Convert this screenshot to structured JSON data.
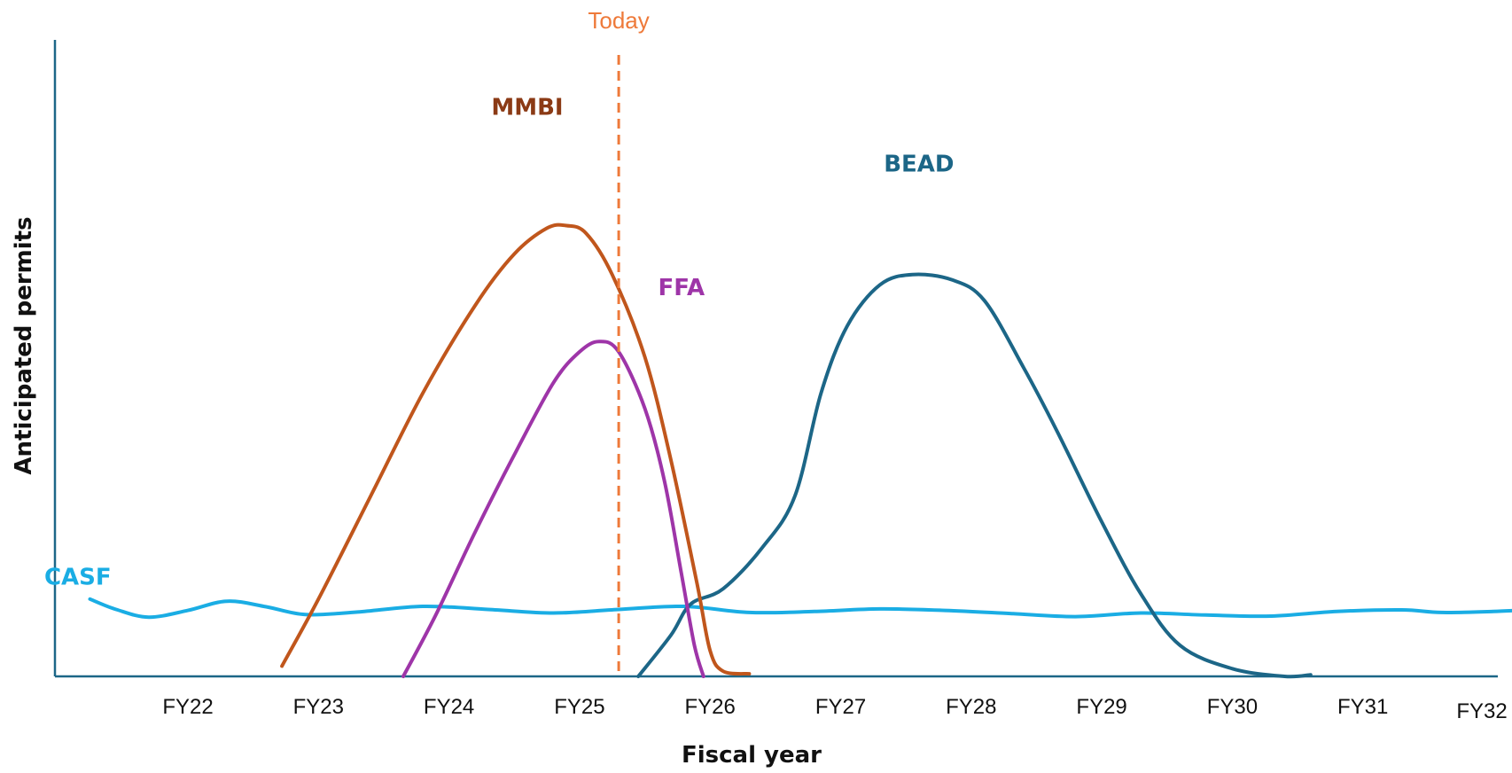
{
  "chart_data": {
    "type": "line",
    "xlabel": "Fiscal year",
    "ylabel": "Anticipated permits",
    "categories": [
      "FY22",
      "FY23",
      "FY24",
      "FY25",
      "FY26",
      "FY27",
      "FY28",
      "FY29",
      "FY30",
      "FY31",
      "FY32"
    ],
    "xlim": [
      21,
      32
    ],
    "ylim": [
      0,
      100
    ],
    "grid": false,
    "legend": "inline labels",
    "today": {
      "label": "Today",
      "x": 25.3,
      "color": "#EE7A3A"
    },
    "series": [
      {
        "name": "MMBI",
        "color": "#C0561C",
        "label_color": "#8B3A15",
        "label_at": [
          24.6,
          109
        ],
        "points": [
          [
            22.72,
            2
          ],
          [
            23.0,
            15
          ],
          [
            23.4,
            35
          ],
          [
            23.8,
            55
          ],
          [
            24.2,
            72
          ],
          [
            24.5,
            82
          ],
          [
            24.75,
            87
          ],
          [
            24.9,
            87.5
          ],
          [
            25.05,
            86
          ],
          [
            25.25,
            78
          ],
          [
            25.5,
            62
          ],
          [
            25.7,
            42
          ],
          [
            25.9,
            18
          ],
          [
            26.0,
            5
          ],
          [
            26.1,
            1
          ],
          [
            26.3,
            0.5
          ]
        ]
      },
      {
        "name": "FFA",
        "color": "#9E35A8",
        "label_color": "#9E35A8",
        "label_at": [
          25.78,
          74
        ],
        "points": [
          [
            23.65,
            0
          ],
          [
            23.9,
            12
          ],
          [
            24.2,
            28
          ],
          [
            24.5,
            43
          ],
          [
            24.8,
            57
          ],
          [
            25.0,
            63
          ],
          [
            25.15,
            65
          ],
          [
            25.3,
            63
          ],
          [
            25.5,
            52
          ],
          [
            25.65,
            38
          ],
          [
            25.78,
            20
          ],
          [
            25.88,
            6
          ],
          [
            25.95,
            0
          ]
        ]
      },
      {
        "name": "BEAD",
        "color": "#1C6687",
        "label_color": "#1C6687",
        "label_at": [
          27.6,
          98
        ],
        "points": [
          [
            25.45,
            0
          ],
          [
            25.7,
            8
          ],
          [
            25.85,
            14
          ],
          [
            26.1,
            17
          ],
          [
            26.4,
            25
          ],
          [
            26.65,
            35
          ],
          [
            26.85,
            55
          ],
          [
            27.05,
            68
          ],
          [
            27.3,
            76
          ],
          [
            27.55,
            78
          ],
          [
            27.85,
            77
          ],
          [
            28.1,
            73
          ],
          [
            28.4,
            60
          ],
          [
            28.65,
            48
          ],
          [
            29.0,
            30
          ],
          [
            29.3,
            16
          ],
          [
            29.6,
            6
          ],
          [
            30.0,
            1.5
          ],
          [
            30.4,
            0
          ],
          [
            30.6,
            0.3
          ]
        ]
      },
      {
        "name": "CASF",
        "color": "#1AADE4",
        "label_color": "#1AADE4",
        "label_at": [
          20.9,
          17.8
        ],
        "points": [
          [
            21.25,
            15
          ],
          [
            21.45,
            13
          ],
          [
            21.7,
            11.5
          ],
          [
            22.0,
            12.8
          ],
          [
            22.3,
            14.6
          ],
          [
            22.6,
            13.5
          ],
          [
            22.9,
            12
          ],
          [
            23.3,
            12.5
          ],
          [
            23.8,
            13.6
          ],
          [
            24.3,
            13
          ],
          [
            24.8,
            12.3
          ],
          [
            25.3,
            13
          ],
          [
            25.8,
            13.6
          ],
          [
            26.3,
            12.4
          ],
          [
            26.8,
            12.6
          ],
          [
            27.3,
            13.1
          ],
          [
            27.8,
            12.8
          ],
          [
            28.3,
            12.2
          ],
          [
            28.8,
            11.6
          ],
          [
            29.3,
            12.3
          ],
          [
            29.8,
            11.9
          ],
          [
            30.3,
            11.7
          ],
          [
            30.8,
            12.6
          ],
          [
            31.3,
            12.9
          ],
          [
            31.6,
            12.4
          ],
          [
            32.0,
            12.6
          ],
          [
            32.35,
            13.0
          ]
        ]
      }
    ]
  }
}
